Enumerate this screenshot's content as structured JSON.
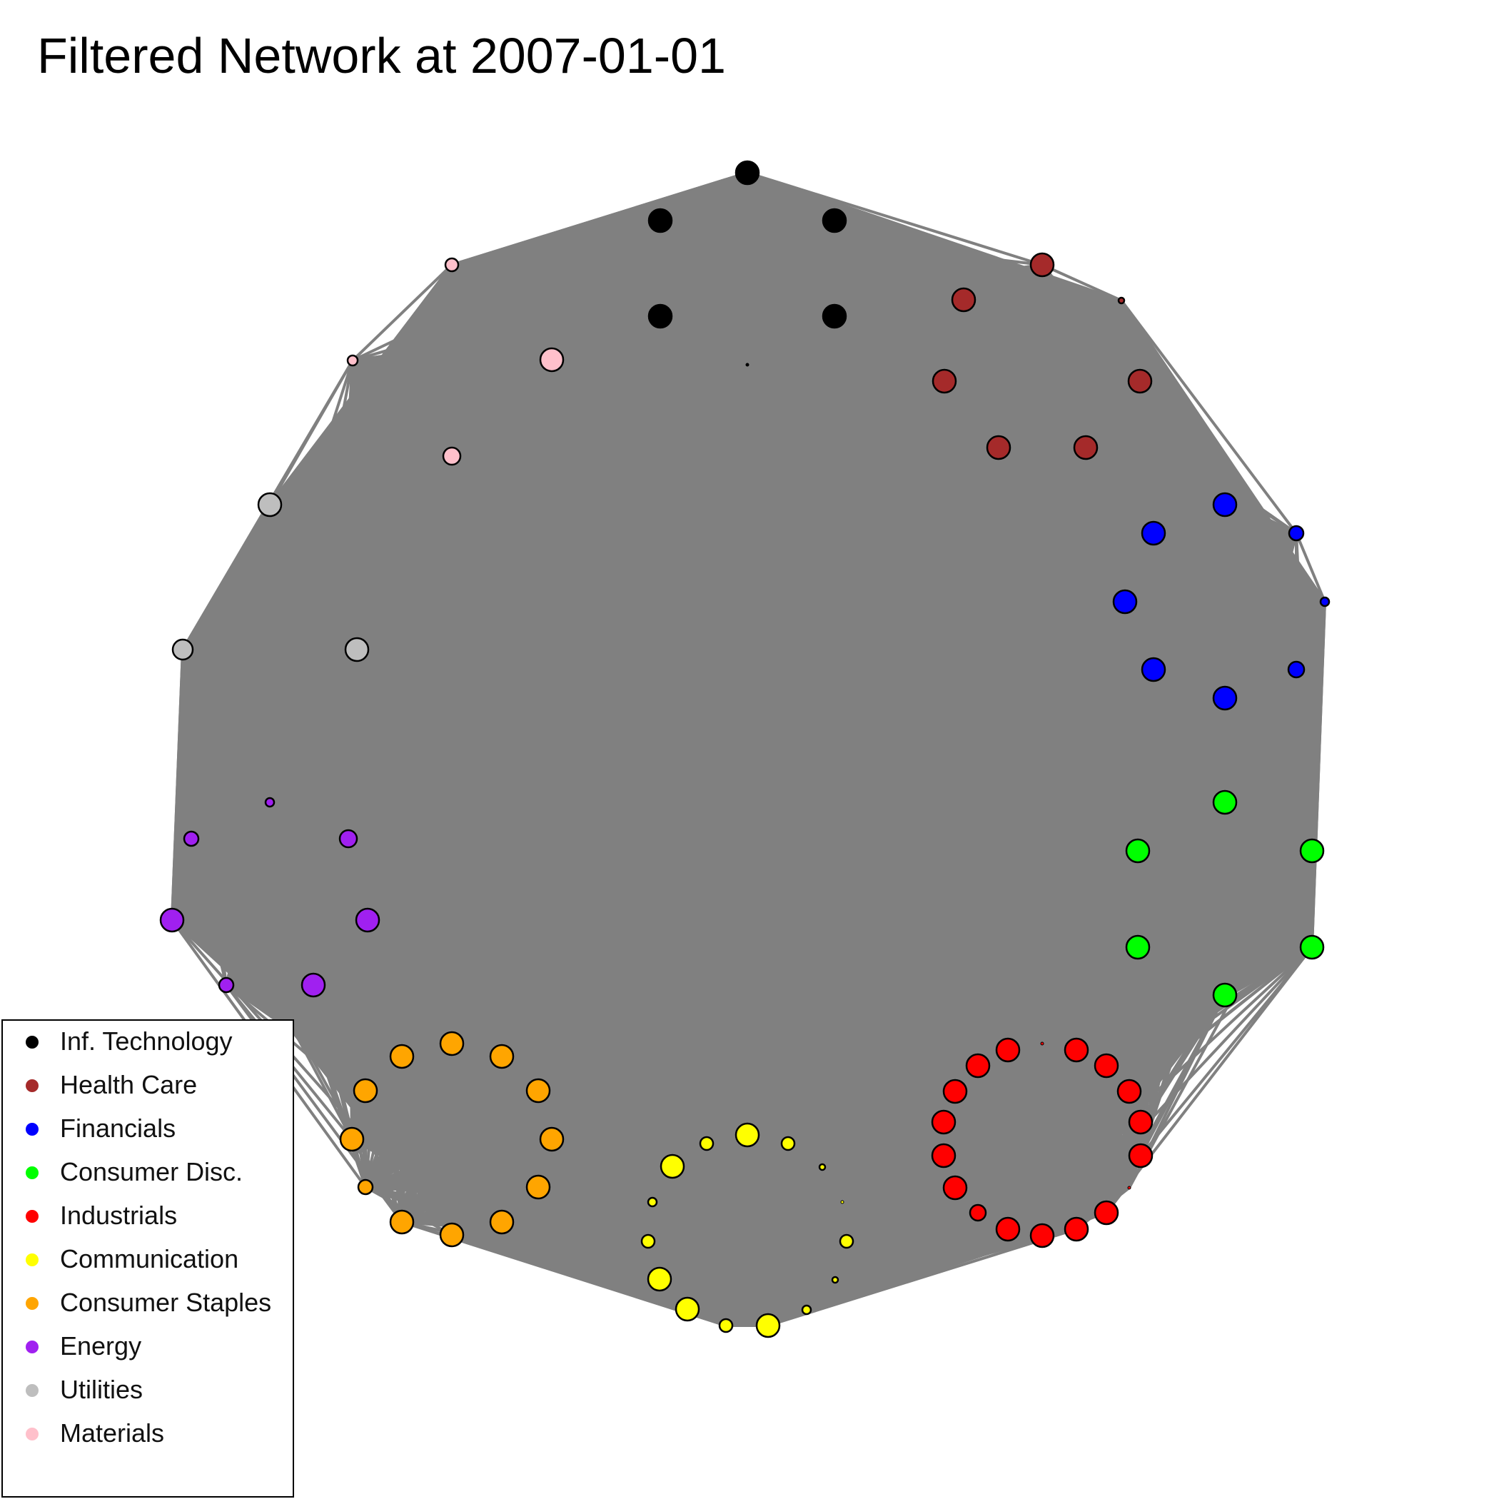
{
  "title": "Filtered Network at 2007-01-01",
  "sectors": [
    {
      "name": "Inf. Technology",
      "color": "#000000"
    },
    {
      "name": "Health Care",
      "color": "#a52a2a"
    },
    {
      "name": "Financials",
      "color": "#0000ff"
    },
    {
      "name": "Consumer Disc.",
      "color": "#00ff00"
    },
    {
      "name": "Industrials",
      "color": "#ff0000"
    },
    {
      "name": "Communication",
      "color": "#ffff00"
    },
    {
      "name": "Consumer Staples",
      "color": "#ffa500"
    },
    {
      "name": "Energy",
      "color": "#a020f0"
    },
    {
      "name": "Utilities",
      "color": "#bebebe"
    },
    {
      "name": "Materials",
      "color": "#ffc0cb"
    }
  ],
  "edge_color": "#808080"
}
